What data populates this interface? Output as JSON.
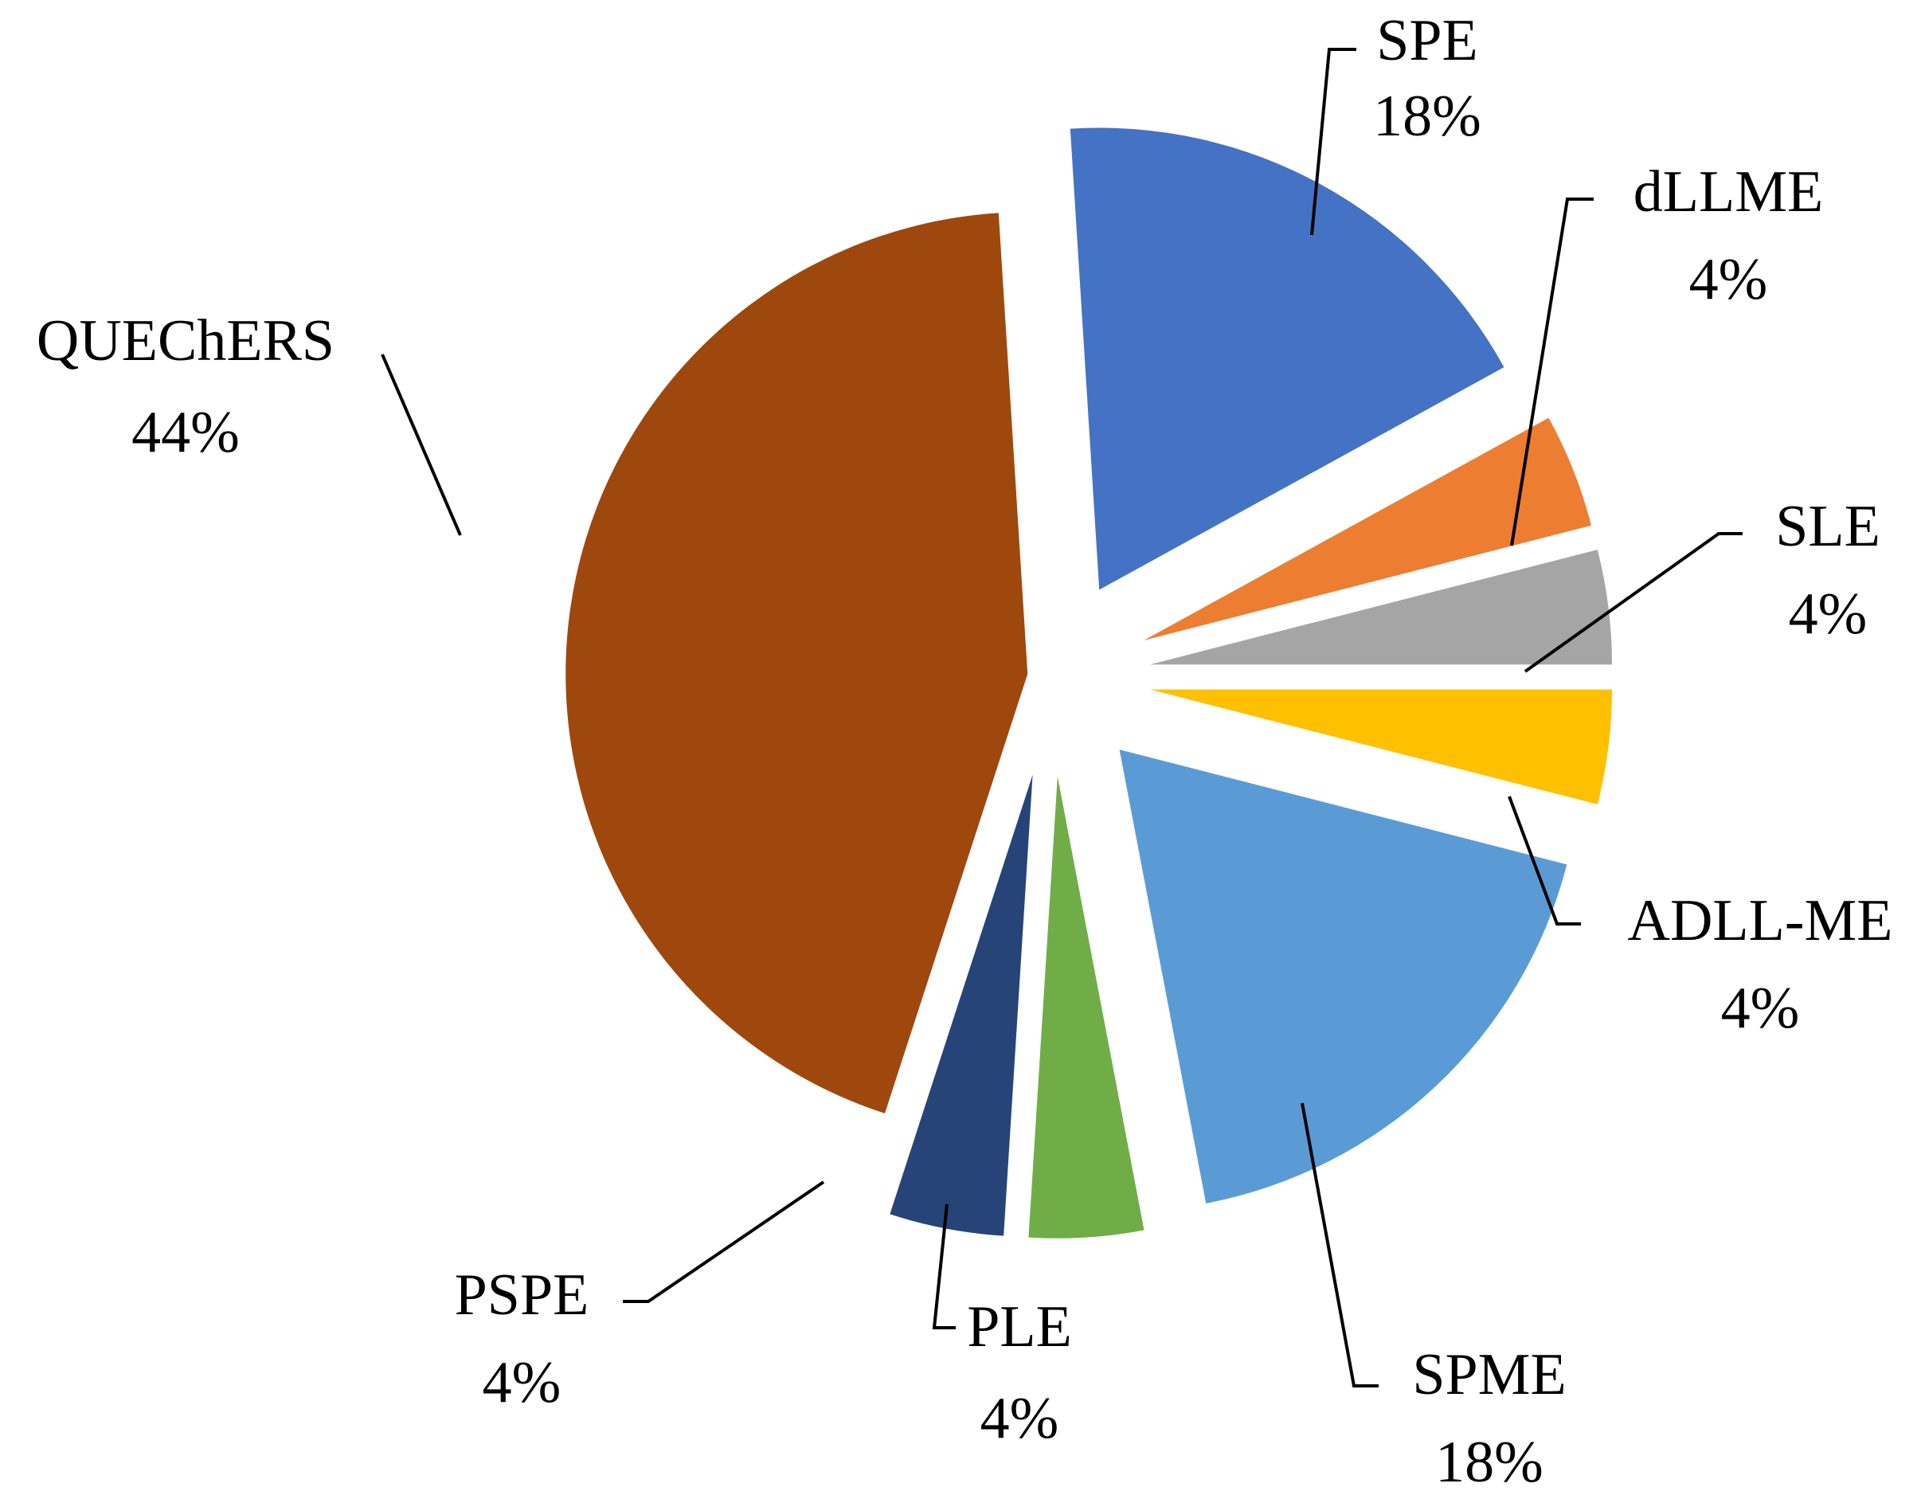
{
  "chart_data": {
    "type": "pie",
    "title": "",
    "exploded": true,
    "start_angle_deg": -3.6,
    "direction": "clockwise",
    "labels_outside_with_leader_lines": true,
    "slices": [
      {
        "label": "SPE",
        "percent_label": "18%",
        "value": 18,
        "color": "#4472C4"
      },
      {
        "label": "dLLME",
        "percent_label": "4%",
        "value": 4,
        "color": "#ED7D31"
      },
      {
        "label": "SLE",
        "percent_label": "4%",
        "value": 4,
        "color": "#A5A5A5"
      },
      {
        "label": "ADLL-ME",
        "percent_label": "4%",
        "value": 4,
        "color": "#FFC000"
      },
      {
        "label": "SPME",
        "percent_label": "18%",
        "value": 18,
        "color": "#5B9BD5"
      },
      {
        "label": "PLE",
        "percent_label": "4%",
        "value": 4,
        "color": "#70AD47"
      },
      {
        "label": "PSPE",
        "percent_label": "4%",
        "value": 4,
        "color": "#264478"
      },
      {
        "label": "QUEChERS",
        "percent_label": "44%",
        "value": 44,
        "color": "#9E480E"
      }
    ]
  }
}
